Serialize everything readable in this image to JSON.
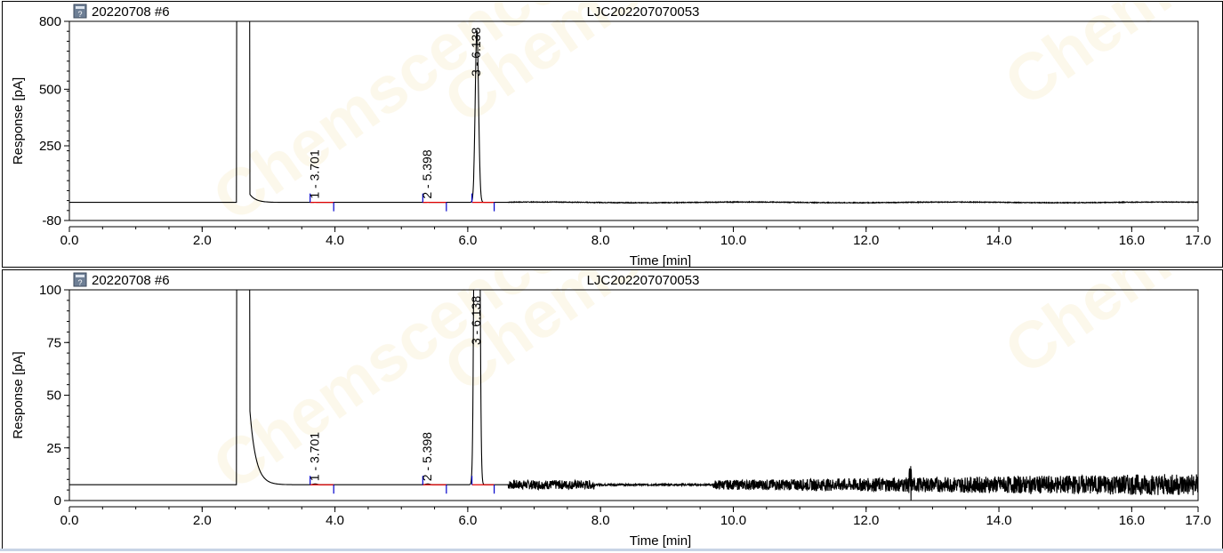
{
  "watermark": "Chemscence",
  "chart_data": [
    {
      "type": "line",
      "sample": "20220708 #6",
      "title": "LJC202207070053",
      "xlabel": "Time [min]",
      "ylabel": "Response [pA]",
      "xlim": [
        0,
        17
      ],
      "ylim": [
        -80,
        800
      ],
      "xticks": [
        "0.0",
        "2.0",
        "4.0",
        "6.0",
        "8.0",
        "10.0",
        "12.0",
        "14.0",
        "16.0",
        "17.0"
      ],
      "yticks": [
        "-80",
        "250",
        "500",
        "800"
      ],
      "baseline": 0,
      "peaks": [
        {
          "label": "1 - 3.701",
          "time": 3.701,
          "height": 0.4
        },
        {
          "label": "2 - 5.398",
          "time": 5.398,
          "height": 0.4
        },
        {
          "label": "3 - 6.138",
          "time": 6.138,
          "height": 760
        }
      ],
      "solvent_peak": {
        "start": 2.52,
        "end": 2.72,
        "height": 800
      },
      "noise_from": 6.6,
      "noise_amplitude": 2
    },
    {
      "type": "line",
      "sample": "20220708 #6",
      "title": "LJC202207070053",
      "xlabel": "Time [min]",
      "ylabel": "Response [pA]",
      "xlim": [
        0,
        17
      ],
      "ylim": [
        0,
        100
      ],
      "xticks": [
        "0.0",
        "2.0",
        "4.0",
        "6.0",
        "8.0",
        "10.0",
        "12.0",
        "14.0",
        "16.0",
        "17.0"
      ],
      "yticks": [
        "0",
        "25",
        "50",
        "75",
        "100"
      ],
      "baseline": 7.5,
      "peaks": [
        {
          "label": "1 - 3.701",
          "time": 3.701,
          "height": 0.4
        },
        {
          "label": "2 - 5.398",
          "time": 5.398,
          "height": 0.4
        },
        {
          "label": "3 - 6.138",
          "time": 6.138,
          "height": 760
        }
      ],
      "solvent_peak": {
        "start": 2.52,
        "end": 2.72,
        "height": 800
      },
      "noise_from": 6.6,
      "noise_amplitude": 2
    }
  ]
}
